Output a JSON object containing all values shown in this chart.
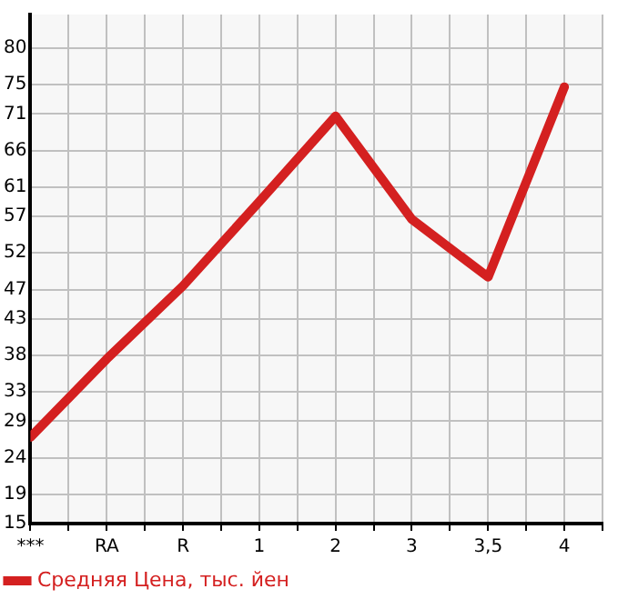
{
  "chart_data": {
    "type": "line",
    "categories": [
      "***",
      "RA",
      "R",
      "1",
      "2",
      "3",
      "3,5",
      "4"
    ],
    "series": [
      {
        "name": "Средняя Цена, тыс. йен",
        "color": "#d42020",
        "values": [
          26.8,
          37.5,
          47.5,
          59,
          70.7,
          56.6,
          48.7,
          74.7
        ]
      }
    ],
    "ylim": [
      15,
      84.6
    ],
    "yticks": [
      15,
      19,
      24,
      29,
      33,
      38,
      43,
      47,
      52,
      57,
      61,
      66,
      71,
      75,
      80
    ],
    "grid": true,
    "legend": "bottom left",
    "marker": "none",
    "line_style": "solid"
  }
}
